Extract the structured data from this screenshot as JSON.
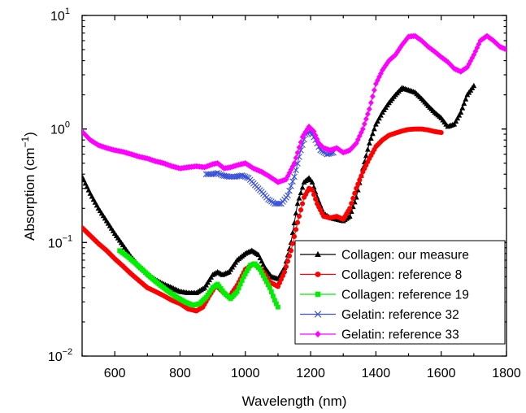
{
  "chart_data": {
    "type": "scatter",
    "xlabel": "Wavelength (nm)",
    "ylabel": {
      "base": "Absorption (cm",
      "sup": "−1",
      "end": ")"
    },
    "xlim": [
      500,
      1800
    ],
    "ylim": [
      0.01,
      10
    ],
    "yscale": "log",
    "x_ticks": [
      600,
      800,
      1000,
      1200,
      1400,
      1600,
      1800
    ],
    "x_tick_labels": [
      "600",
      "800",
      "1000",
      "1200",
      "1400",
      "1600",
      "1800"
    ],
    "y_ticks": [
      {
        "value": 0.01,
        "label": "10",
        "exp": "−2"
      },
      {
        "value": 0.1,
        "label": "10",
        "exp": "−1"
      },
      {
        "value": 1,
        "label": "10",
        "exp": "0"
      },
      {
        "value": 10,
        "label": "10",
        "exp": "1"
      }
    ],
    "grid": false,
    "legend_position": "bottom-right",
    "series": [
      {
        "name": "Collagen: our measure",
        "color": "#000000",
        "marker": "triangle",
        "x": [
          500,
          525,
          550,
          575,
          600,
          625,
          650,
          675,
          700,
          725,
          750,
          775,
          800,
          825,
          850,
          875,
          900,
          915,
          930,
          950,
          975,
          1000,
          1020,
          1040,
          1060,
          1080,
          1100,
          1120,
          1140,
          1160,
          1180,
          1195,
          1205,
          1220,
          1240,
          1260,
          1280,
          1300,
          1320,
          1340,
          1360,
          1380,
          1400,
          1420,
          1440,
          1460,
          1480,
          1500,
          1520,
          1540,
          1560,
          1580,
          1600,
          1620,
          1640,
          1660,
          1680,
          1700
        ],
        "y": [
          0.38,
          0.27,
          0.2,
          0.155,
          0.12,
          0.095,
          0.075,
          0.062,
          0.053,
          0.047,
          0.043,
          0.04,
          0.037,
          0.036,
          0.036,
          0.04,
          0.052,
          0.055,
          0.052,
          0.055,
          0.07,
          0.08,
          0.085,
          0.078,
          0.06,
          0.05,
          0.048,
          0.06,
          0.1,
          0.22,
          0.34,
          0.37,
          0.34,
          0.25,
          0.18,
          0.165,
          0.16,
          0.155,
          0.17,
          0.25,
          0.45,
          0.75,
          1.1,
          1.4,
          1.7,
          2.0,
          2.3,
          2.2,
          2.1,
          1.85,
          1.6,
          1.4,
          1.25,
          1.05,
          1.1,
          1.4,
          2.0,
          2.4
        ]
      },
      {
        "name": "Collagen: reference 8",
        "color": "#ff0000",
        "marker": "circle",
        "x": [
          500,
          525,
          550,
          575,
          600,
          625,
          650,
          675,
          700,
          725,
          750,
          775,
          800,
          825,
          850,
          870,
          890,
          910,
          930,
          950,
          975,
          1000,
          1025,
          1050,
          1075,
          1100,
          1120,
          1140,
          1160,
          1180,
          1195,
          1205,
          1220,
          1240,
          1260,
          1280,
          1300,
          1320,
          1340,
          1360,
          1380,
          1400,
          1420,
          1440,
          1460,
          1480,
          1500,
          1520,
          1540,
          1560,
          1580,
          1600
        ],
        "y": [
          0.135,
          0.115,
          0.098,
          0.085,
          0.072,
          0.062,
          0.053,
          0.046,
          0.04,
          0.037,
          0.034,
          0.031,
          0.029,
          0.026,
          0.025,
          0.027,
          0.034,
          0.042,
          0.037,
          0.033,
          0.042,
          0.058,
          0.065,
          0.058,
          0.045,
          0.041,
          0.055,
          0.085,
          0.15,
          0.25,
          0.3,
          0.29,
          0.22,
          0.17,
          0.165,
          0.17,
          0.16,
          0.2,
          0.3,
          0.42,
          0.55,
          0.7,
          0.8,
          0.88,
          0.92,
          0.96,
          0.99,
          1.0,
          1.0,
          0.98,
          0.95,
          0.93
        ]
      },
      {
        "name": "Collagen: reference 19",
        "color": "#00ee00",
        "marker": "square",
        "x": [
          615,
          640,
          665,
          690,
          715,
          740,
          765,
          790,
          815,
          840,
          860,
          880,
          900,
          915,
          935,
          955,
          975,
          995,
          1015,
          1030,
          1045,
          1060,
          1075,
          1090,
          1100
        ],
        "y": [
          0.085,
          0.075,
          0.065,
          0.056,
          0.048,
          0.042,
          0.037,
          0.033,
          0.03,
          0.028,
          0.029,
          0.033,
          0.04,
          0.043,
          0.036,
          0.032,
          0.037,
          0.05,
          0.063,
          0.065,
          0.058,
          0.048,
          0.04,
          0.031,
          0.027
        ]
      },
      {
        "name": "Gelatin: reference 32",
        "color": "#3a50d8",
        "marker": "x",
        "x": [
          880,
          900,
          915,
          930,
          950,
          970,
          990,
          1010,
          1030,
          1050,
          1070,
          1090,
          1110,
          1130,
          1150,
          1170,
          1185,
          1200,
          1215,
          1230,
          1250,
          1270
        ],
        "y": [
          0.4,
          0.4,
          0.41,
          0.39,
          0.38,
          0.38,
          0.39,
          0.37,
          0.32,
          0.28,
          0.24,
          0.22,
          0.22,
          0.26,
          0.38,
          0.65,
          0.9,
          0.95,
          0.8,
          0.65,
          0.6,
          0.62
        ]
      },
      {
        "name": "Gelatin: reference 33",
        "color": "#ff00ff",
        "marker": "diamond",
        "x": [
          500,
          525,
          550,
          575,
          600,
          625,
          650,
          675,
          700,
          725,
          750,
          775,
          800,
          825,
          850,
          875,
          900,
          915,
          935,
          955,
          975,
          1000,
          1025,
          1050,
          1075,
          1100,
          1125,
          1150,
          1175,
          1195,
          1210,
          1225,
          1240,
          1260,
          1280,
          1300,
          1320,
          1340,
          1360,
          1380,
          1400,
          1420,
          1440,
          1460,
          1480,
          1500,
          1520,
          1540,
          1560,
          1580,
          1600,
          1620,
          1640,
          1660,
          1680,
          1700,
          1720,
          1740,
          1760,
          1780,
          1800
        ],
        "y": [
          0.95,
          0.8,
          0.72,
          0.68,
          0.65,
          0.63,
          0.6,
          0.57,
          0.55,
          0.52,
          0.5,
          0.47,
          0.45,
          0.46,
          0.47,
          0.46,
          0.49,
          0.5,
          0.45,
          0.46,
          0.48,
          0.5,
          0.45,
          0.42,
          0.38,
          0.34,
          0.36,
          0.5,
          0.85,
          1.05,
          0.95,
          0.75,
          0.68,
          0.65,
          0.68,
          0.62,
          0.65,
          0.75,
          1.0,
          1.5,
          2.5,
          3.3,
          4.0,
          4.5,
          5.5,
          6.5,
          6.6,
          6.0,
          5.3,
          4.8,
          4.3,
          3.9,
          3.4,
          3.2,
          3.5,
          4.5,
          6.0,
          6.6,
          6.0,
          5.3,
          5.0
        ]
      }
    ]
  }
}
